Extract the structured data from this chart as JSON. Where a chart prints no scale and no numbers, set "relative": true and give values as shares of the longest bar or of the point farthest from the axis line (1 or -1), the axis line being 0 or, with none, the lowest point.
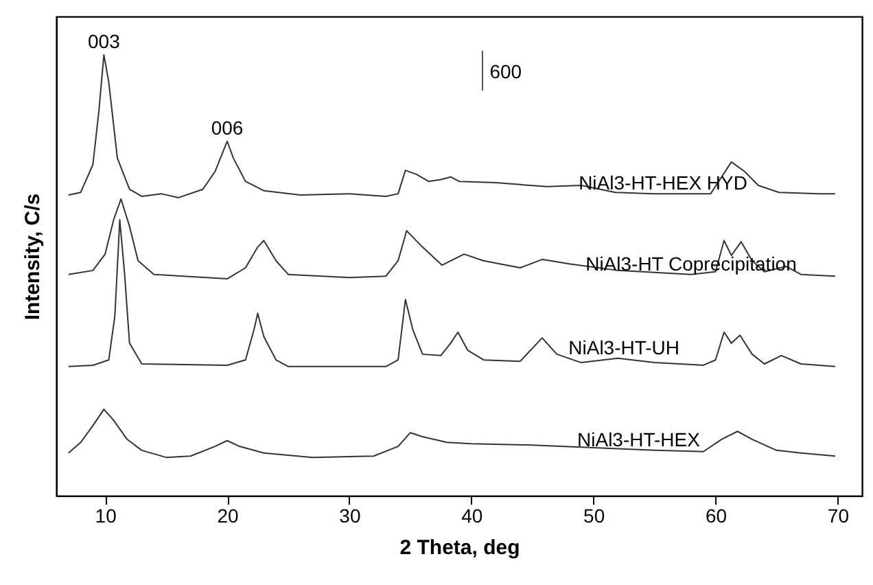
{
  "chart_data": {
    "type": "line",
    "relative": true,
    "xlabel": "2 Theta, deg",
    "ylabel": "Intensity, C/s",
    "xlim": [
      6,
      72
    ],
    "xticks": [
      10,
      20,
      30,
      40,
      50,
      60,
      70
    ],
    "grid": false,
    "marker": "none",
    "line_style": "solid",
    "annotations": [
      {
        "text": "003",
        "x": 9.9,
        "y": 1.0
      },
      {
        "text": "006",
        "x": 20.0,
        "y": 0.804
      },
      "600"
    ],
    "series": [
      {
        "name": "NiAl3-HT-HEX HYD",
        "color": "#333333",
        "x": [
          7,
          8,
          9,
          9.5,
          9.9,
          10.3,
          11,
          12,
          13,
          14.6,
          16,
          18,
          19,
          20,
          20.5,
          21.5,
          23,
          26,
          30,
          33,
          34,
          34.6,
          35.5,
          36.5,
          37.5,
          38.3,
          39,
          42,
          46.2,
          49,
          51.8,
          55,
          59.6,
          61.3,
          62.4,
          63.5,
          65.2,
          68.6,
          69.8
        ],
        "values": [
          0.682,
          0.688,
          0.751,
          0.875,
          1.0,
          0.938,
          0.766,
          0.695,
          0.679,
          0.685,
          0.676,
          0.695,
          0.735,
          0.804,
          0.766,
          0.713,
          0.692,
          0.682,
          0.685,
          0.679,
          0.685,
          0.738,
          0.729,
          0.713,
          0.717,
          0.723,
          0.713,
          0.71,
          0.701,
          0.704,
          0.688,
          0.685,
          0.685,
          0.757,
          0.735,
          0.704,
          0.688,
          0.685,
          0.685
        ]
      },
      {
        "name": "NiAl3-HT Coprecipitation",
        "color": "#333333",
        "x": [
          7,
          9,
          10,
          10.7,
          11.3,
          12,
          12.7,
          14,
          20,
          21.5,
          22.5,
          23,
          24,
          25,
          30,
          33,
          34,
          34.7,
          36,
          37.6,
          39.4,
          41,
          44,
          45.8,
          48,
          52,
          58,
          60,
          60.7,
          61.3,
          62.1,
          63,
          64,
          65.8,
          67,
          69.8
        ],
        "values": [
          0.502,
          0.511,
          0.548,
          0.626,
          0.673,
          0.611,
          0.533,
          0.502,
          0.492,
          0.517,
          0.564,
          0.579,
          0.533,
          0.502,
          0.495,
          0.498,
          0.533,
          0.601,
          0.564,
          0.523,
          0.548,
          0.533,
          0.517,
          0.536,
          0.526,
          0.511,
          0.502,
          0.508,
          0.579,
          0.545,
          0.576,
          0.533,
          0.508,
          0.52,
          0.502,
          0.498
        ]
      },
      {
        "name": "NiAl3-HT-UH",
        "color": "#333333",
        "x": [
          7,
          9,
          10.3,
          10.8,
          11.2,
          11.6,
          12,
          13,
          20,
          21.5,
          22.2,
          22.5,
          23,
          24,
          25,
          33,
          34,
          34.6,
          35.2,
          36,
          37.5,
          38.3,
          38.9,
          39.7,
          41,
          44,
          45.8,
          47,
          49,
          52,
          55,
          59,
          60,
          60.7,
          61.3,
          62,
          63,
          64,
          65.4,
          67,
          69.8
        ],
        "values": [
          0.293,
          0.296,
          0.308,
          0.408,
          0.626,
          0.502,
          0.346,
          0.299,
          0.296,
          0.308,
          0.377,
          0.414,
          0.361,
          0.308,
          0.293,
          0.293,
          0.308,
          0.445,
          0.377,
          0.321,
          0.318,
          0.346,
          0.371,
          0.33,
          0.308,
          0.305,
          0.358,
          0.321,
          0.302,
          0.312,
          0.302,
          0.296,
          0.308,
          0.371,
          0.346,
          0.364,
          0.321,
          0.299,
          0.318,
          0.299,
          0.293
        ]
      },
      {
        "name": "NiAl3-HT-HEX",
        "color": "#333333",
        "x": [
          7,
          8,
          9,
          9.9,
          10.7,
          11.8,
          13,
          15,
          17,
          19,
          20,
          21,
          23,
          27,
          32,
          34,
          35,
          36,
          38,
          40,
          45,
          50,
          55,
          59,
          60.5,
          61.8,
          63,
          65,
          67,
          69.8
        ],
        "values": [
          0.097,
          0.121,
          0.159,
          0.196,
          0.171,
          0.128,
          0.103,
          0.087,
          0.09,
          0.112,
          0.125,
          0.112,
          0.097,
          0.087,
          0.09,
          0.112,
          0.143,
          0.134,
          0.121,
          0.118,
          0.115,
          0.109,
          0.103,
          0.1,
          0.128,
          0.146,
          0.128,
          0.103,
          0.097,
          0.09
        ]
      }
    ]
  }
}
